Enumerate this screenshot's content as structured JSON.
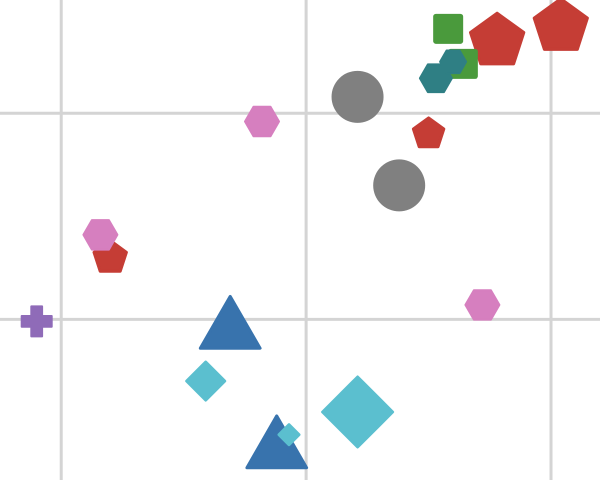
{
  "chart_data": {
    "type": "scatter",
    "title": "",
    "xlabel": "",
    "ylabel": "",
    "grid": true,
    "legend": "none",
    "xlim": [
      -0.25,
      2.2
    ],
    "ylim": [
      -0.78,
      1.55
    ],
    "xgrid": [
      0,
      1,
      2
    ],
    "ygrid": [
      0,
      1
    ],
    "series": [
      {
        "marker": "pentagon",
        "color": "#c53d35",
        "points": [
          {
            "x": 1.78,
            "y": 1.35,
            "s": 28
          },
          {
            "x": 2.04,
            "y": 1.42,
            "s": 28
          },
          {
            "x": 1.5,
            "y": 0.9,
            "s": 16
          },
          {
            "x": 0.2,
            "y": 0.3,
            "s": 17
          }
        ]
      },
      {
        "marker": "square",
        "color": "#4a9a3c",
        "points": [
          {
            "x": 1.58,
            "y": 1.41,
            "s": 15
          },
          {
            "x": 1.64,
            "y": 1.24,
            "s": 15
          }
        ]
      },
      {
        "marker": "hexagon",
        "color": "#2f7f84",
        "points": [
          {
            "x": 1.53,
            "y": 1.17,
            "s": 16
          },
          {
            "x": 1.6,
            "y": 1.25,
            "s": 13
          }
        ]
      },
      {
        "marker": "circle",
        "color": "#808080",
        "points": [
          {
            "x": 1.21,
            "y": 1.08,
            "s": 26
          },
          {
            "x": 1.38,
            "y": 0.65,
            "s": 26
          }
        ]
      },
      {
        "marker": "hexagon",
        "color": "#d67fbf",
        "points": [
          {
            "x": 0.82,
            "y": 0.96,
            "s": 17
          },
          {
            "x": 0.16,
            "y": 0.41,
            "s": 17
          },
          {
            "x": 1.72,
            "y": 0.07,
            "s": 17
          }
        ]
      },
      {
        "marker": "plus",
        "color": "#8f6bb8",
        "points": [
          {
            "x": -0.1,
            "y": -0.01,
            "s": 15
          }
        ]
      },
      {
        "marker": "triangle",
        "color": "#3873ad",
        "points": [
          {
            "x": 0.69,
            "y": -0.02,
            "s": 30
          },
          {
            "x": 0.88,
            "y": -0.6,
            "s": 30
          }
        ]
      },
      {
        "marker": "diamond",
        "color": "#5bbfcf",
        "points": [
          {
            "x": 0.59,
            "y": -0.3,
            "s": 19
          },
          {
            "x": 1.21,
            "y": -0.45,
            "s": 35
          },
          {
            "x": 0.93,
            "y": -0.56,
            "s": 10
          }
        ]
      }
    ]
  }
}
